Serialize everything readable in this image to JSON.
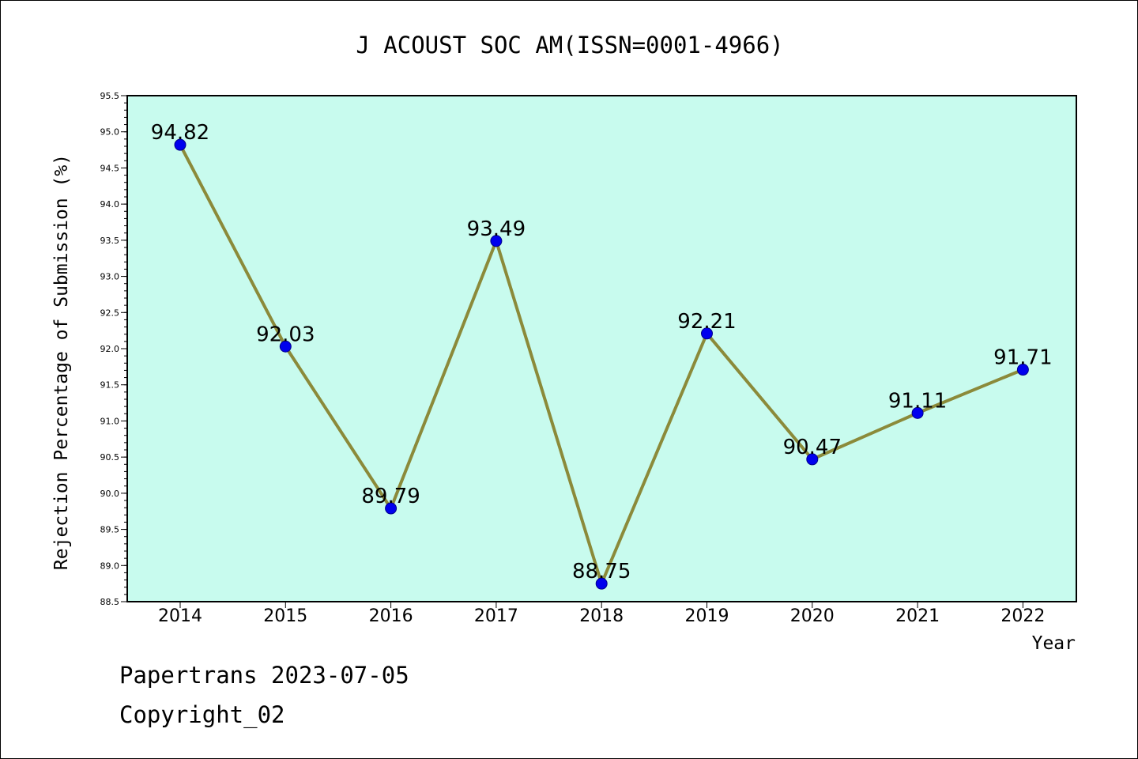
{
  "footer": {
    "line1": "Papertrans 2023-07-05",
    "line2": "Copyright_02"
  },
  "colors": {
    "plot_background": "#c8fbee",
    "line": "#8b8a3a",
    "marker": "#0000ee"
  },
  "chart_data": {
    "type": "line",
    "title": "J ACOUST SOC AM(ISSN=0001-4966)",
    "xlabel": "Year",
    "ylabel": "Rejection Percentage of Submission (%)",
    "categories": [
      "2014",
      "2015",
      "2016",
      "2017",
      "2018",
      "2019",
      "2020",
      "2021",
      "2022"
    ],
    "series": [
      {
        "values": [
          94.82,
          92.03,
          89.79,
          93.49,
          88.75,
          92.21,
          90.47,
          91.11,
          91.71
        ],
        "labels": [
          "94.82",
          "92.03",
          "89.79",
          "93.49",
          "88.75",
          "92.21",
          "90.47",
          "91.11",
          "91.71"
        ]
      }
    ],
    "ylim": [
      88.5,
      95.5
    ],
    "yticks": [
      "88.5",
      "89.0",
      "89.5",
      "90.0",
      "90.5",
      "91.0",
      "91.5",
      "92.0",
      "92.5",
      "93.0",
      "93.5",
      "94.0",
      "94.5",
      "95.0",
      "95.5"
    ],
    "grid": false,
    "legend": "none"
  }
}
